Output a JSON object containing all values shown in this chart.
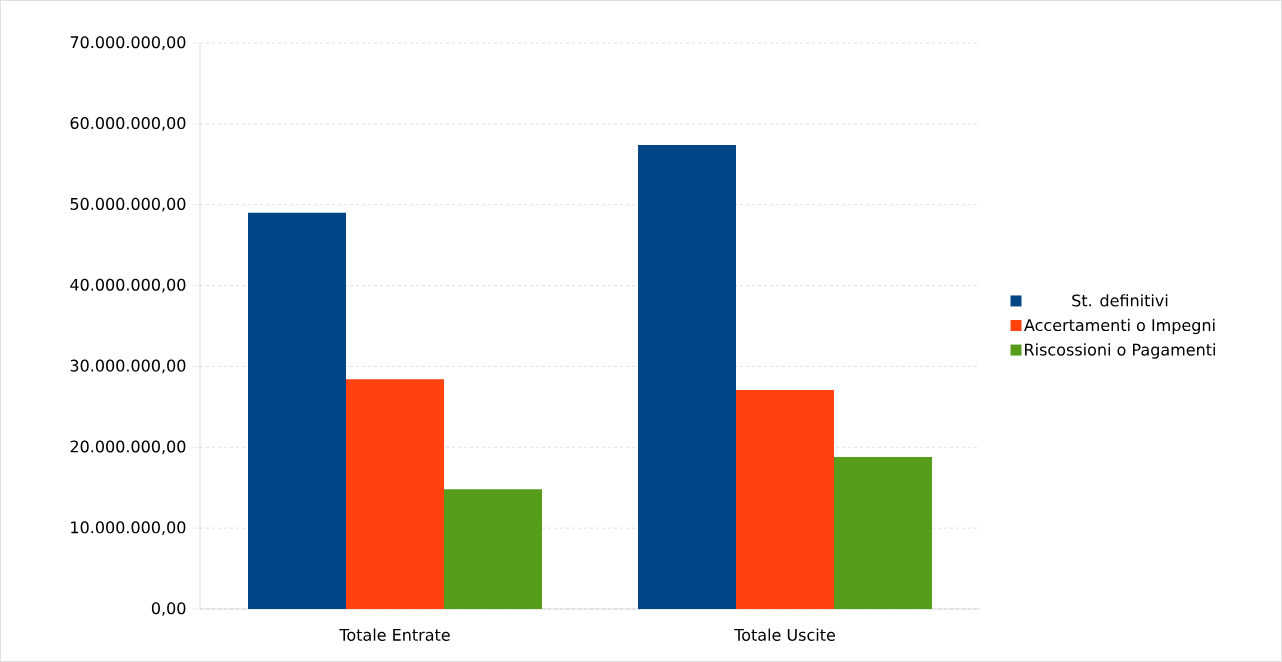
{
  "chart_data": {
    "type": "bar",
    "categories": [
      "Totale Entrate",
      "Totale Uscite"
    ],
    "series": [
      {
        "name": "St. definitivi",
        "color": "#004586",
        "values": [
          49000000,
          57400000
        ]
      },
      {
        "name": "Accertamenti o Impegni",
        "color": "#ff420e",
        "values": [
          28400000,
          27100000
        ]
      },
      {
        "name": "Riscossioni o Pagamenti",
        "color": "#579d1c",
        "values": [
          14800000,
          18800000
        ]
      }
    ],
    "ylim": [
      0,
      70000000
    ],
    "yticks": [
      {
        "value": 0,
        "label": "0,00"
      },
      {
        "value": 10000000,
        "label": "10.000.000,00"
      },
      {
        "value": 20000000,
        "label": "20.000.000,00"
      },
      {
        "value": 30000000,
        "label": "30.000.000,00"
      },
      {
        "value": 40000000,
        "label": "40.000.000,00"
      },
      {
        "value": 50000000,
        "label": "50.000.000,00"
      },
      {
        "value": 60000000,
        "label": "60.000.000,00"
      },
      {
        "value": 70000000,
        "label": "70.000.000,00"
      }
    ],
    "grid": "y",
    "legend": "right"
  }
}
